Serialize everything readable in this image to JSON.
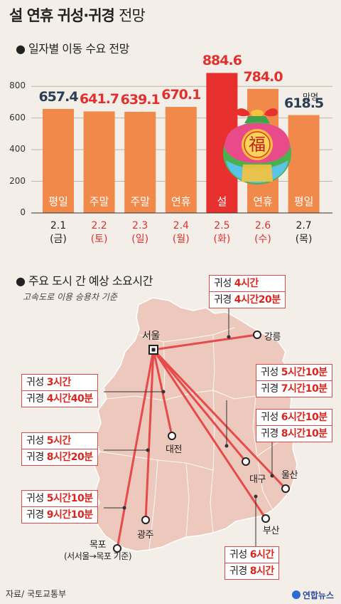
{
  "title": {
    "bold": "설 연휴 귀성·귀경",
    "light": "전망"
  },
  "chart_section": "● 일자별 이동 수요 전망",
  "chart_data": {
    "type": "bar",
    "title": "일자별 이동 수요 전망",
    "unit": "만명",
    "ylim": [
      0,
      900
    ],
    "yticks": [
      0,
      200,
      400,
      600,
      800
    ],
    "categories": [
      "2.1 (금)",
      "2.2 (토)",
      "2.3 (일)",
      "2.4 (월)",
      "2.5 (화)",
      "2.6 (수)",
      "2.7 (목)"
    ],
    "dates": [
      "2.1",
      "2.2",
      "2.3",
      "2.4",
      "2.5",
      "2.6",
      "2.7"
    ],
    "weekdays": [
      "(금)",
      "(토)",
      "(일)",
      "(월)",
      "(화)",
      "(수)",
      "(목)"
    ],
    "day_types": [
      "평일",
      "주말",
      "주말",
      "연휴",
      "설",
      "연휴",
      "평일"
    ],
    "values": [
      657.4,
      641.7,
      639.1,
      670.1,
      884.6,
      784.0,
      618.5
    ],
    "value_labels": [
      "657.4",
      "641.7",
      "639.1",
      "670.1",
      "884.6",
      "784.0",
      "618.5"
    ],
    "value_colors": [
      "#2a3f55",
      "#e0312f",
      "#e0312f",
      "#e0312f",
      "#e0312f",
      "#e0312f",
      "#2a3f55"
    ],
    "bar_colors": [
      "#f0894a",
      "#f0894a",
      "#f0894a",
      "#f0894a",
      "#e8312e",
      "#f0894a",
      "#f0894a"
    ],
    "date_red": [
      false,
      true,
      true,
      true,
      true,
      true,
      false
    ]
  },
  "map_section": "● 주요 도시 간 예상 소요시간",
  "map_note": "고속도로 이용 승용차 기준",
  "cities": {
    "seoul": "서울",
    "gangneung": "강릉",
    "daejeon": "대전",
    "daegu": "대구",
    "ulsan": "울산",
    "gwangju": "광주",
    "busan": "부산",
    "mokpo": "목포",
    "mokpo_note": "(서서울→목포 기준)"
  },
  "labels": {
    "gwiseong": "귀성",
    "gwigyeong": "귀경"
  },
  "routes": {
    "gangneung": {
      "go": "4시간",
      "back": "4시간20분"
    },
    "daejeon": {
      "go": "3시간",
      "back": "4시간40분"
    },
    "daegu": {
      "go": "5시간10분",
      "back": "7시간10분"
    },
    "ulsan": {
      "go": "6시간10분",
      "back": "8시간10분"
    },
    "gwangju": {
      "go": "5시간",
      "back": "8시간20분"
    },
    "mokpo": {
      "go": "5시간10분",
      "back": "9시간10분"
    },
    "busan": {
      "go": "6시간",
      "back": "8시간"
    }
  },
  "footer": {
    "source": "자료/ 국토교통부",
    "logo": "연합뉴스"
  },
  "colors": {
    "accent": "#d9251d",
    "bar": "#f0894a",
    "bar_peak": "#e8312e",
    "map": "#ecc9bc"
  }
}
